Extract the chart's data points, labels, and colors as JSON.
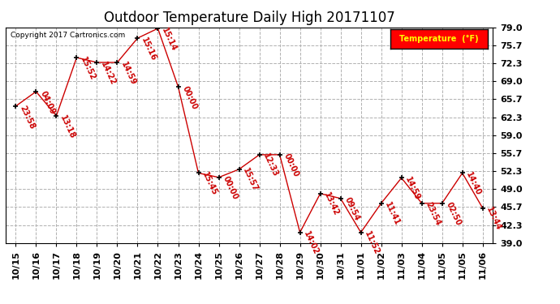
{
  "title": "Outdoor Temperature Daily High 20171107",
  "copyright": "Copyright 2017 Cartronics.com",
  "legend_label": "Temperature  (°F)",
  "x_labels": [
    "10/15",
    "10/16",
    "10/17",
    "10/18",
    "10/19",
    "10/20",
    "10/21",
    "10/22",
    "10/23",
    "10/24",
    "10/25",
    "10/26",
    "10/27",
    "10/28",
    "10/29",
    "10/30",
    "10/31",
    "11/01",
    "11/02",
    "11/03",
    "11/04",
    "11/05",
    "11/05",
    "11/06"
  ],
  "y_values": [
    64.4,
    67.1,
    62.6,
    73.4,
    72.5,
    72.5,
    77.0,
    78.8,
    68.0,
    52.0,
    51.2,
    52.7,
    55.4,
    55.4,
    41.0,
    48.2,
    47.3,
    41.0,
    46.4,
    51.1,
    46.4,
    46.4,
    52.0,
    45.5
  ],
  "point_labels": [
    "23:58",
    "04:09",
    "13:18",
    "15:52",
    "14:22",
    "14:59",
    "15:16",
    "15:14",
    "00:00",
    "15:45",
    "00:00",
    "15:57",
    "12:33",
    "00:00",
    "14:02",
    "13:42",
    "09:54",
    "11:52",
    "11:41",
    "14:59",
    "23:54",
    "02:50",
    "14:40",
    "13:44"
  ],
  "y_ticks": [
    39.0,
    42.3,
    45.7,
    49.0,
    52.3,
    55.7,
    59.0,
    62.3,
    65.7,
    69.0,
    72.3,
    75.7,
    79.0
  ],
  "ylim": [
    39.0,
    79.0
  ],
  "line_color": "#cc0000",
  "marker_color": "#000000",
  "label_color": "#cc0000",
  "bg_color": "#ffffff",
  "grid_color": "#b0b0b0",
  "title_fontsize": 12,
  "label_fontsize": 7,
  "tick_fontsize": 8,
  "legend_bg": "#ff0000",
  "legend_text_color": "#ffff00"
}
